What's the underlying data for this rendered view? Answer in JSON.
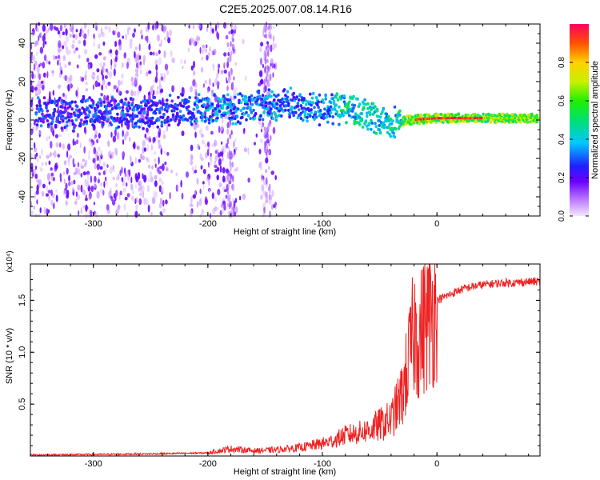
{
  "figure_title": "C2E5.2025.007.08.14.R16",
  "colors": {
    "axis": "#000000",
    "snr_line": "#ee2222",
    "background": "#ffffff"
  },
  "chart_data": [
    {
      "type": "heatmap",
      "title": "C2E5.2025.007.08.14.R16",
      "xlabel": "Height of straight line (km)",
      "ylabel": "Frequency (Hz)",
      "xlim": [
        -355,
        90
      ],
      "ylim": [
        -50,
        50
      ],
      "xticks": [
        -300,
        -200,
        -100,
        0
      ],
      "yticks": [
        -40,
        -20,
        0,
        20,
        40
      ],
      "xticks_labels": [
        "-300",
        "-200",
        "-100",
        "0"
      ],
      "yticks_labels": [
        "-40",
        "-20",
        "0",
        "20",
        "40"
      ],
      "colorbar": {
        "label": "Normalized spectral amplitude",
        "range": [
          0,
          1
        ],
        "ticks": [
          0.0,
          0.2,
          0.4,
          0.6,
          0.8
        ],
        "ticks_labels": [
          "0.0",
          "0.2",
          "0.4",
          "0.6",
          "0.8"
        ]
      },
      "ridge": {
        "description_points": [
          {
            "x": -300,
            "freq": 4
          },
          {
            "x": -250,
            "freq": 4
          },
          {
            "x": -200,
            "freq": 6
          },
          {
            "x": -150,
            "freq": 7
          },
          {
            "x": -120,
            "freq": 8
          },
          {
            "x": -100,
            "freq": 6
          },
          {
            "x": -80,
            "freq": 6
          },
          {
            "x": -60,
            "freq": 2
          },
          {
            "x": -40,
            "freq": -2
          },
          {
            "x": -25,
            "freq": 0
          },
          {
            "x": 0,
            "freq": 1
          },
          {
            "x": 50,
            "freq": 1
          },
          {
            "x": 90,
            "freq": 1
          }
        ]
      }
    },
    {
      "type": "line",
      "xlabel": "Height of straight line (km)",
      "ylabel": "SNR (10 * v/v)",
      "scale_label": "(x10⁴)",
      "xlim": [
        -355,
        90
      ],
      "ylim": [
        0,
        1.85
      ],
      "xticks": [
        -300,
        -200,
        -100,
        0
      ],
      "yticks": [
        0.5,
        1.0,
        1.5
      ],
      "xticks_labels": [
        "-300",
        "-200",
        "-100",
        "0"
      ],
      "yticks_labels": [
        "0.5",
        "1.0",
        "1.5"
      ],
      "series": [
        {
          "name": "SNR",
          "x": [
            -355,
            -300,
            -250,
            -200,
            -180,
            -160,
            -140,
            -120,
            -100,
            -90,
            -80,
            -70,
            -60,
            -50,
            -40,
            -30,
            -25,
            -20,
            -15,
            -10,
            -5,
            0,
            10,
            20,
            30,
            40,
            50,
            60,
            70,
            80,
            90
          ],
          "y": [
            0.01,
            0.015,
            0.02,
            0.03,
            0.07,
            0.05,
            0.06,
            0.08,
            0.12,
            0.15,
            0.2,
            0.22,
            0.25,
            0.3,
            0.35,
            0.6,
            0.9,
            1.2,
            1.15,
            1.3,
            1.35,
            1.5,
            1.55,
            1.6,
            1.63,
            1.65,
            1.66,
            1.67,
            1.67,
            1.68,
            1.68
          ]
        }
      ]
    }
  ]
}
